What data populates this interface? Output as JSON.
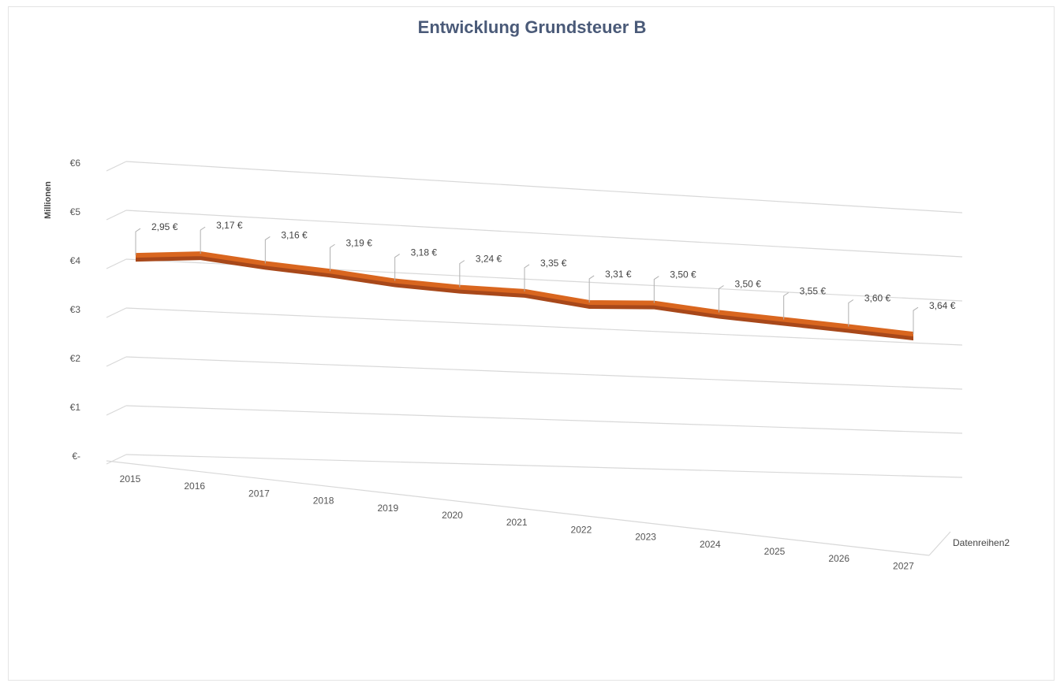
{
  "chart_data": {
    "type": "line",
    "title": "Entwicklung Grundsteuer B",
    "ylabel": "Millionen",
    "ytick_labels": [
      "€-",
      "€1",
      "€2",
      "€3",
      "€4",
      "€5",
      "€6"
    ],
    "ylim": [
      0,
      6
    ],
    "grid": true,
    "categories": [
      "2015",
      "2016",
      "2017",
      "2018",
      "2019",
      "2020",
      "2021",
      "2022",
      "2023",
      "2024",
      "2025",
      "2026",
      "2027"
    ],
    "series": [
      {
        "name": "Datenreihen2",
        "values": [
          2.95,
          3.17,
          3.16,
          3.19,
          3.18,
          3.24,
          3.35,
          3.31,
          3.5,
          3.5,
          3.55,
          3.6,
          3.64
        ],
        "data_labels": [
          "2,95 €",
          "3,17 €",
          "3,16 €",
          "3,19 €",
          "3,18 €",
          "3,24 €",
          "3,35 €",
          "3,31 €",
          "3,50 €",
          "3,50 €",
          "3,55 €",
          "3,60 €",
          "3,64 €"
        ]
      }
    ],
    "colors": {
      "series": "#d9661f",
      "series_dark": "#a8481a",
      "grid": "#d8d8d8",
      "title": "#4a5a78"
    }
  }
}
